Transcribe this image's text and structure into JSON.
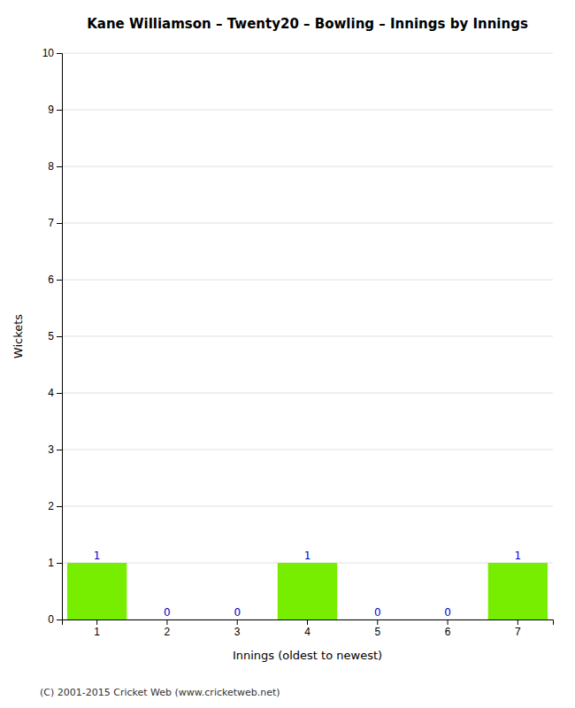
{
  "chart_data": {
    "type": "bar",
    "title": "Kane Williamson – Twenty20 – Bowling – Innings by Innings",
    "x_label": "Innings (oldest to newest)",
    "y_label": "Wickets",
    "categories": [
      "1",
      "2",
      "3",
      "4",
      "5",
      "6",
      "7"
    ],
    "values": [
      1,
      0,
      0,
      1,
      0,
      0,
      1
    ],
    "color": "#77ee00",
    "ylim": [
      0,
      10
    ],
    "yticks": [
      0,
      1,
      2,
      3,
      4,
      5,
      6,
      7,
      8,
      9,
      10
    ],
    "grid": true,
    "data_labels": true,
    "annotations": [
      "(C) 2001-2015 Cricket Web (www.cricketweb.net)"
    ]
  }
}
